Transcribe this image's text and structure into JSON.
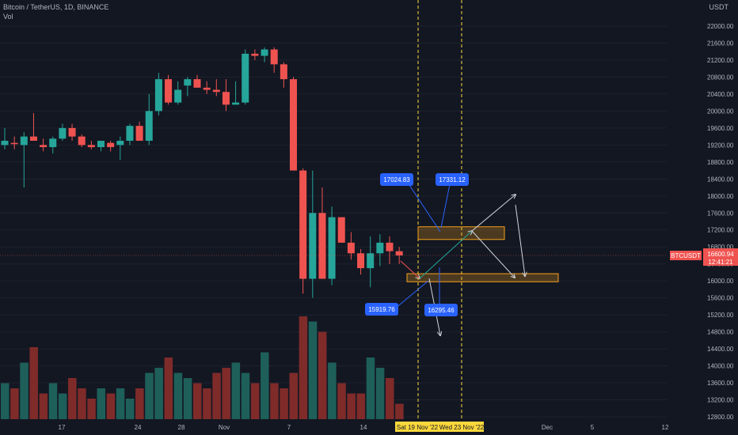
{
  "header": {
    "title": "Bitcoin / TetherUS, 1D, BINANCE",
    "volume_label": "Vol",
    "unit": "USDT"
  },
  "colors": {
    "background": "#131722",
    "up": "#26a69a",
    "down": "#ef5350",
    "vol_up": "#1e5f5a",
    "vol_down": "#7f2b2a",
    "zone": "#f7a21b",
    "label_blue": "#2962ff",
    "price_tag": "#ef5350",
    "date_tag": "#fbd83c"
  },
  "price_label": {
    "symbol": "BTCUSDT",
    "price": "16600.94",
    "countdown": "12:41:21"
  },
  "chart_data": {
    "type": "candlestick",
    "title": "Bitcoin / TetherUS, 1D, BINANCE",
    "ylim": [
      12600,
      21900
    ],
    "y_ticks": [
      12800,
      13200,
      13600,
      14000,
      14400,
      14800,
      15200,
      15600,
      16000,
      16400,
      16800,
      17200,
      17600,
      18000,
      18400,
      18800,
      19200,
      19600,
      20000,
      20400,
      20800,
      21200,
      21600,
      22000
    ],
    "x_ticks": [
      "17",
      "24",
      "28",
      "Nov",
      "7",
      "14",
      "Sat 19 Nov '22",
      "Wed 23 Nov '22",
      "Dec",
      "5",
      "12"
    ],
    "candles": [
      {
        "o": 19200,
        "h": 19600,
        "l": 19100,
        "c": 19300
      },
      {
        "o": 19250,
        "h": 19400,
        "l": 19100,
        "c": 19220
      },
      {
        "o": 19200,
        "h": 19500,
        "l": 18200,
        "c": 19400
      },
      {
        "o": 19400,
        "h": 19950,
        "l": 19300,
        "c": 19300
      },
      {
        "o": 19200,
        "h": 19350,
        "l": 19050,
        "c": 19150
      },
      {
        "o": 19150,
        "h": 19400,
        "l": 19000,
        "c": 19350
      },
      {
        "o": 19350,
        "h": 19700,
        "l": 19300,
        "c": 19600
      },
      {
        "o": 19600,
        "h": 19700,
        "l": 19300,
        "c": 19400
      },
      {
        "o": 19400,
        "h": 19450,
        "l": 19150,
        "c": 19200
      },
      {
        "o": 19200,
        "h": 19300,
        "l": 19100,
        "c": 19150
      },
      {
        "o": 19150,
        "h": 19300,
        "l": 19050,
        "c": 19300
      },
      {
        "o": 19250,
        "h": 19300,
        "l": 19050,
        "c": 19150
      },
      {
        "o": 19200,
        "h": 19400,
        "l": 18850,
        "c": 19300
      },
      {
        "o": 19300,
        "h": 19700,
        "l": 19200,
        "c": 19650
      },
      {
        "o": 19650,
        "h": 19750,
        "l": 19300,
        "c": 19300
      },
      {
        "o": 19300,
        "h": 20400,
        "l": 19200,
        "c": 20000
      },
      {
        "o": 20000,
        "h": 20900,
        "l": 19900,
        "c": 20750
      },
      {
        "o": 20750,
        "h": 20850,
        "l": 20150,
        "c": 20200
      },
      {
        "o": 20200,
        "h": 20700,
        "l": 20150,
        "c": 20500
      },
      {
        "o": 20600,
        "h": 20800,
        "l": 20350,
        "c": 20750
      },
      {
        "o": 20750,
        "h": 20850,
        "l": 20600,
        "c": 20550
      },
      {
        "o": 20550,
        "h": 20700,
        "l": 20400,
        "c": 20500
      },
      {
        "o": 20500,
        "h": 20750,
        "l": 20350,
        "c": 20450
      },
      {
        "o": 20450,
        "h": 20750,
        "l": 20000,
        "c": 20150
      },
      {
        "o": 20150,
        "h": 20700,
        "l": 20150,
        "c": 20200
      },
      {
        "o": 20200,
        "h": 21450,
        "l": 20150,
        "c": 21350
      },
      {
        "o": 21350,
        "h": 21450,
        "l": 21200,
        "c": 21300
      },
      {
        "o": 21300,
        "h": 21500,
        "l": 21150,
        "c": 21450
      },
      {
        "o": 21450,
        "h": 21500,
        "l": 20900,
        "c": 21100
      },
      {
        "o": 21100,
        "h": 21150,
        "l": 20550,
        "c": 20750
      },
      {
        "o": 20750,
        "h": 20800,
        "l": 18600,
        "c": 18600
      },
      {
        "o": 18600,
        "h": 18650,
        "l": 15700,
        "c": 16050
      },
      {
        "o": 16050,
        "h": 18600,
        "l": 15600,
        "c": 17600
      },
      {
        "o": 17600,
        "h": 18200,
        "l": 16050,
        "c": 16050
      },
      {
        "o": 16050,
        "h": 17750,
        "l": 15900,
        "c": 17500
      },
      {
        "o": 17500,
        "h": 17500,
        "l": 16900,
        "c": 16900
      },
      {
        "o": 16900,
        "h": 17150,
        "l": 16500,
        "c": 16650
      },
      {
        "o": 16650,
        "h": 16750,
        "l": 16150,
        "c": 16300
      },
      {
        "o": 16300,
        "h": 17050,
        "l": 15850,
        "c": 16650
      },
      {
        "o": 16650,
        "h": 17100,
        "l": 16350,
        "c": 16900
      },
      {
        "o": 16900,
        "h": 17050,
        "l": 16400,
        "c": 16700
      },
      {
        "o": 16700,
        "h": 16800,
        "l": 16400,
        "c": 16600
      }
    ],
    "volume_relative": [
      0.35,
      0.3,
      0.55,
      0.7,
      0.25,
      0.35,
      0.25,
      0.4,
      0.3,
      0.2,
      0.3,
      0.25,
      0.3,
      0.2,
      0.3,
      0.45,
      0.5,
      0.6,
      0.45,
      0.4,
      0.35,
      0.3,
      0.45,
      0.5,
      0.55,
      0.45,
      0.35,
      0.65,
      0.35,
      0.3,
      0.45,
      1.0,
      0.95,
      0.85,
      0.55,
      0.35,
      0.25,
      0.25,
      0.6,
      0.5,
      0.4,
      0.15
    ],
    "zones": [
      {
        "from_price": 17050,
        "to_price": 17200
      },
      {
        "from_price": 15980,
        "to_price": 16170
      }
    ],
    "annotations": [
      "17024.83",
      "17331.12",
      "15919.76",
      "16295.46"
    ]
  }
}
